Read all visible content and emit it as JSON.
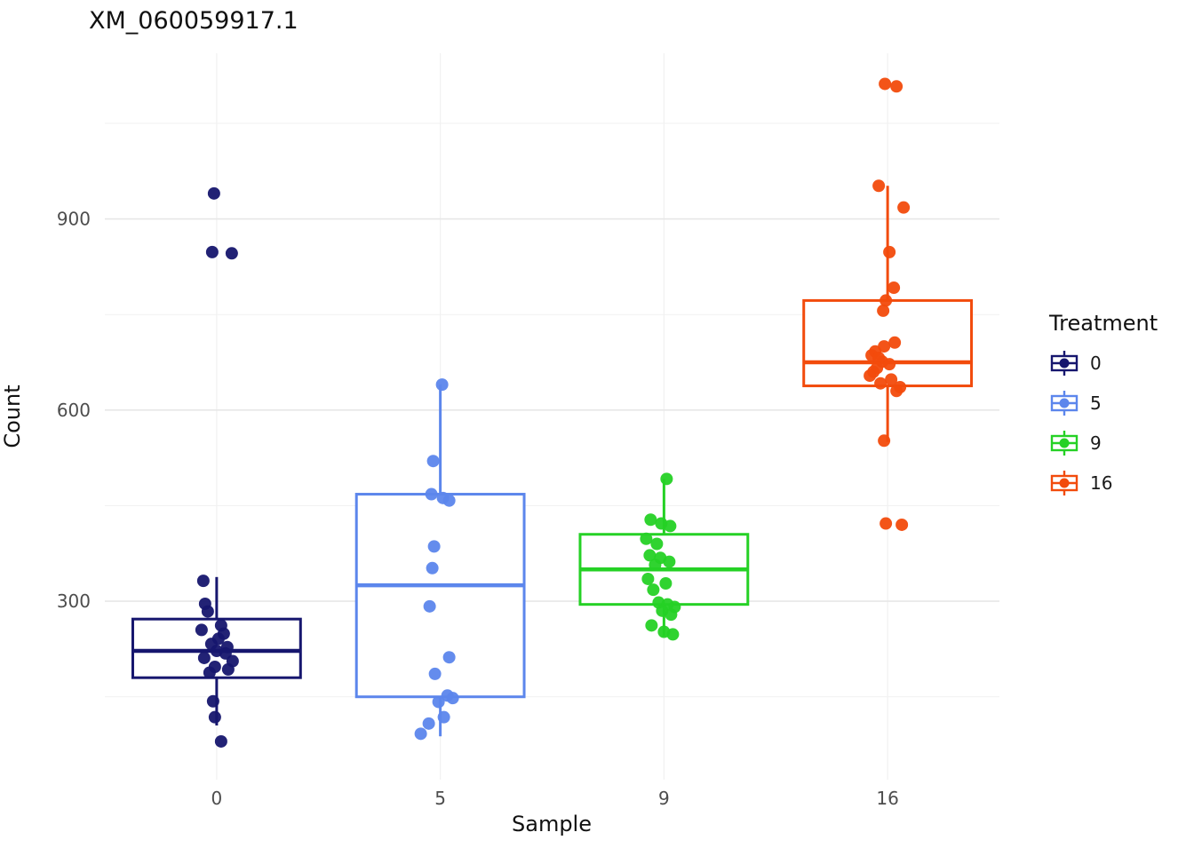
{
  "title": "XM_060059917.1",
  "x_axis_label": "Sample",
  "y_axis_label": "Count",
  "legend": {
    "title": "Treatment",
    "entries": [
      {
        "label": "0",
        "color": "#16166e"
      },
      {
        "label": "5",
        "color": "#5c86ec"
      },
      {
        "label": "9",
        "color": "#25d125"
      },
      {
        "label": "16",
        "color": "#f24b0c"
      }
    ]
  },
  "chart_data": {
    "type": "boxplot",
    "title": "XM_060059917.1",
    "xlabel": "Sample",
    "ylabel": "Count",
    "categories": [
      "0",
      "5",
      "9",
      "16"
    ],
    "yticks": [
      300,
      600,
      900
    ],
    "minor_ticks": [
      150,
      450,
      750,
      1050
    ],
    "ylim": [
      20,
      1160
    ],
    "grid": true,
    "legend_position": "right",
    "colors": {
      "major_grid": "#e7e7e7",
      "minor_grid": "#f1f1f1",
      "tick_text": "#4d4d4d"
    },
    "groups": [
      {
        "category": "0",
        "treatment": "0",
        "color": "#16166e",
        "box": {
          "whisker_low": 105,
          "q1": 180,
          "median": 222,
          "q3": 272,
          "whisker_high": 338
        },
        "points": [
          [
            -3,
            940
          ],
          [
            -5,
            848
          ],
          [
            17,
            846
          ],
          [
            -15,
            332
          ],
          [
            -13,
            296
          ],
          [
            -10,
            284
          ],
          [
            5,
            262
          ],
          [
            -17,
            255
          ],
          [
            8,
            249
          ],
          [
            2,
            241
          ],
          [
            -6,
            233
          ],
          [
            12,
            228
          ],
          [
            0,
            222
          ],
          [
            10,
            218
          ],
          [
            -14,
            211
          ],
          [
            18,
            206
          ],
          [
            -2,
            197
          ],
          [
            13,
            193
          ],
          [
            -8,
            188
          ],
          [
            -4,
            143
          ],
          [
            -2,
            118
          ],
          [
            5,
            80
          ]
        ]
      },
      {
        "category": "5",
        "treatment": "5",
        "color": "#5c86ec",
        "box": {
          "whisker_low": 88,
          "q1": 150,
          "median": 325,
          "q3": 468,
          "whisker_high": 640
        },
        "points": [
          [
            2,
            640
          ],
          [
            -8,
            520
          ],
          [
            -10,
            468
          ],
          [
            3,
            462
          ],
          [
            10,
            458
          ],
          [
            -7,
            386
          ],
          [
            -9,
            352
          ],
          [
            -12,
            292
          ],
          [
            10,
            212
          ],
          [
            -6,
            186
          ],
          [
            8,
            152
          ],
          [
            14,
            148
          ],
          [
            -2,
            142
          ],
          [
            4,
            118
          ],
          [
            -13,
            108
          ],
          [
            -22,
            92
          ]
        ]
      },
      {
        "category": "9",
        "treatment": "9",
        "color": "#25d125",
        "box": {
          "whisker_low": 245,
          "q1": 295,
          "median": 350,
          "q3": 405,
          "whisker_high": 492
        },
        "points": [
          [
            3,
            492
          ],
          [
            -15,
            428
          ],
          [
            -3,
            422
          ],
          [
            7,
            418
          ],
          [
            -20,
            398
          ],
          [
            -8,
            390
          ],
          [
            -16,
            372
          ],
          [
            -4,
            368
          ],
          [
            6,
            362
          ],
          [
            -10,
            357
          ],
          [
            -18,
            335
          ],
          [
            2,
            328
          ],
          [
            -12,
            318
          ],
          [
            -6,
            298
          ],
          [
            4,
            295
          ],
          [
            12,
            291
          ],
          [
            -2,
            285
          ],
          [
            8,
            279
          ],
          [
            -14,
            262
          ],
          [
            0,
            252
          ],
          [
            10,
            248
          ]
        ]
      },
      {
        "category": "16",
        "treatment": "16",
        "color": "#f24b0c",
        "box": {
          "whisker_low": 550,
          "q1": 638,
          "median": 675,
          "q3": 772,
          "whisker_high": 952
        },
        "points": [
          [
            -3,
            1112
          ],
          [
            10,
            1108
          ],
          [
            -10,
            952
          ],
          [
            18,
            918
          ],
          [
            2,
            848
          ],
          [
            7,
            792
          ],
          [
            -2,
            772
          ],
          [
            -5,
            756
          ],
          [
            8,
            706
          ],
          [
            -4,
            700
          ],
          [
            -14,
            692
          ],
          [
            -18,
            686
          ],
          [
            -10,
            682
          ],
          [
            -6,
            676
          ],
          [
            2,
            672
          ],
          [
            -12,
            666
          ],
          [
            -16,
            660
          ],
          [
            -20,
            654
          ],
          [
            4,
            648
          ],
          [
            -8,
            642
          ],
          [
            14,
            636
          ],
          [
            10,
            630
          ],
          [
            -4,
            552
          ],
          [
            -2,
            422
          ],
          [
            16,
            420
          ]
        ]
      }
    ]
  }
}
